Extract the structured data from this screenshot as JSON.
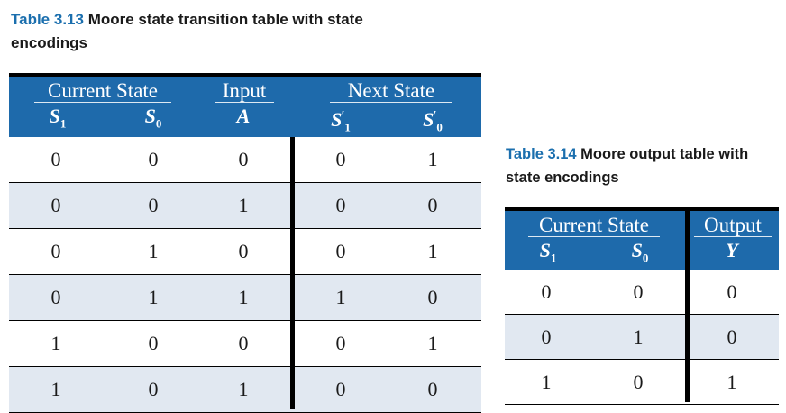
{
  "table1": {
    "caption_num": "Table 3.13",
    "caption_text": "Moore state transition table with state encodings",
    "groups": {
      "current": "Current State",
      "input": "Input",
      "next": "Next State"
    },
    "cols": {
      "s1": "S",
      "s1_sub": "1",
      "s0": "S",
      "s0_sub": "0",
      "a": "A",
      "ns1": "S",
      "ns1_sub": "1",
      "ns0": "S",
      "ns0_sub": "0",
      "prime": "′"
    },
    "rows": [
      [
        "0",
        "0",
        "0",
        "0",
        "1"
      ],
      [
        "0",
        "0",
        "1",
        "0",
        "0"
      ],
      [
        "0",
        "1",
        "0",
        "0",
        "1"
      ],
      [
        "0",
        "1",
        "1",
        "1",
        "0"
      ],
      [
        "1",
        "0",
        "0",
        "0",
        "1"
      ],
      [
        "1",
        "0",
        "1",
        "0",
        "0"
      ]
    ]
  },
  "table2": {
    "caption_num": "Table 3.14",
    "caption_text": "Moore output table with state encodings",
    "groups": {
      "current": "Current State",
      "output": "Output"
    },
    "cols": {
      "s1": "S",
      "s1_sub": "1",
      "s0": "S",
      "s0_sub": "0",
      "y": "Y"
    },
    "rows": [
      [
        "0",
        "0",
        "0"
      ],
      [
        "0",
        "1",
        "0"
      ],
      [
        "1",
        "0",
        "1"
      ]
    ]
  },
  "colors": {
    "header_bg": "#1e6aab",
    "alt_row": "#e1e8f1",
    "caption_accent": "#1b6fae"
  }
}
